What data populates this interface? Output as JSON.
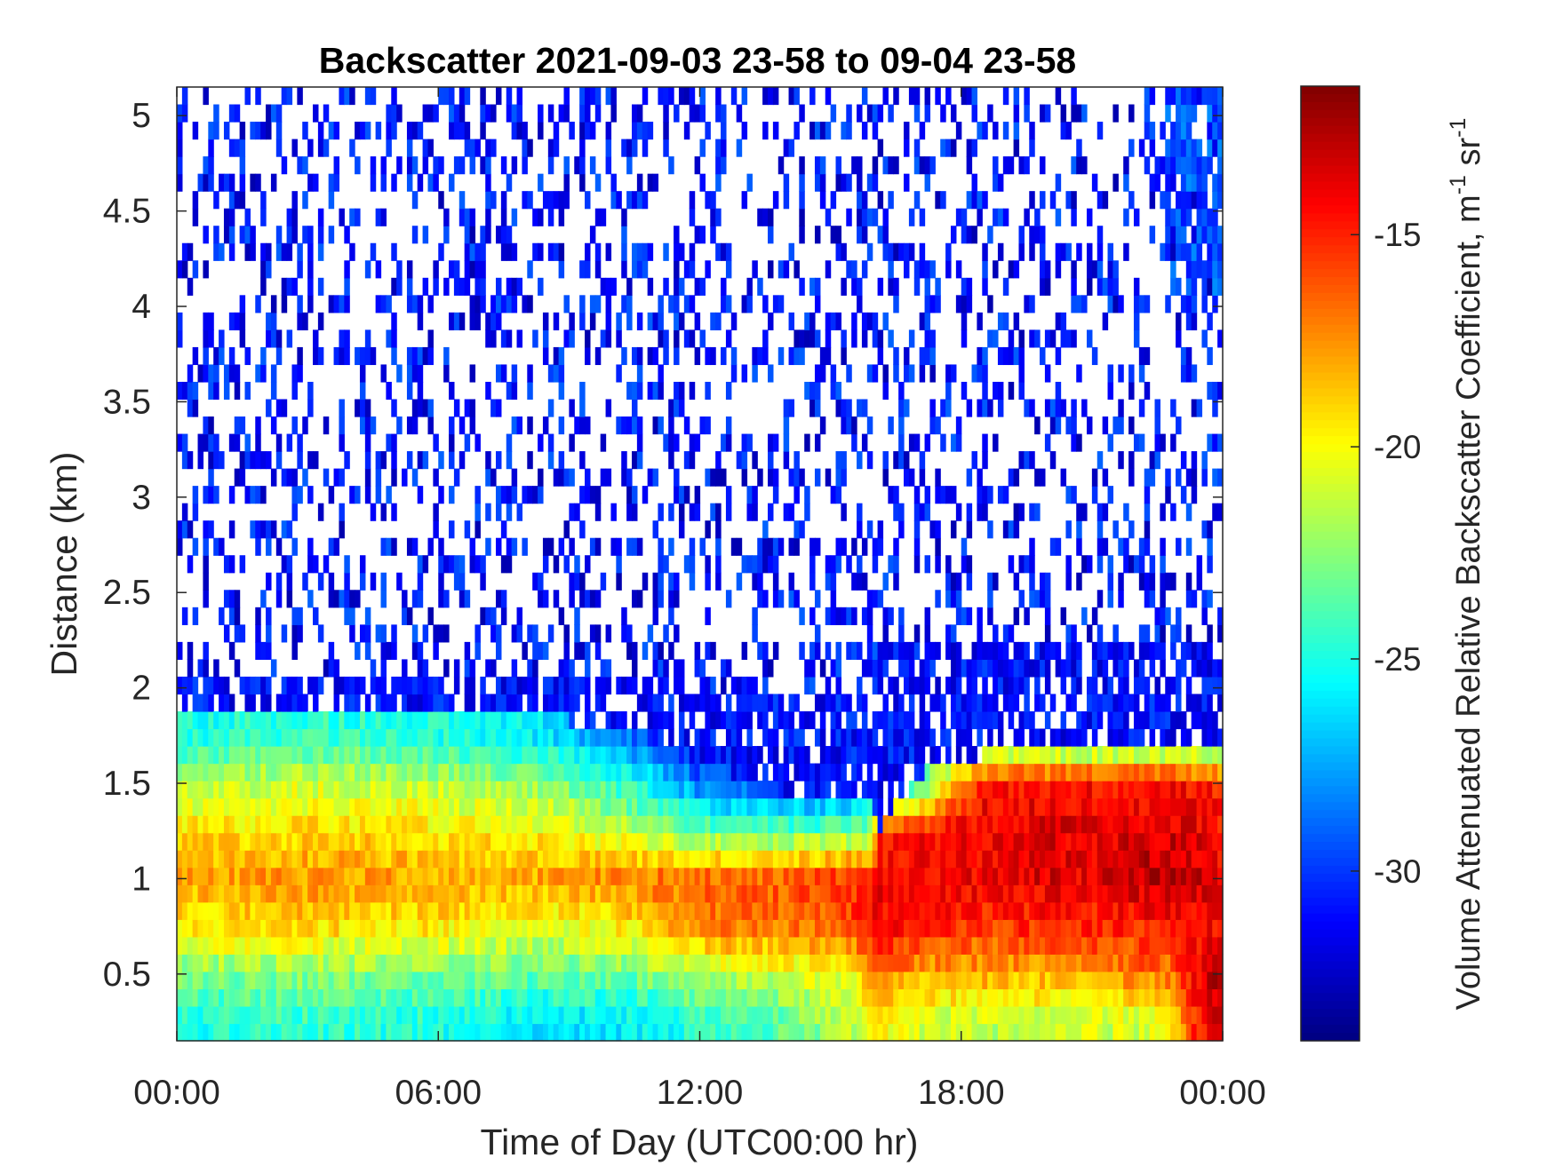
{
  "chart_data": {
    "type": "heatmap",
    "title": "Backscatter 2021-09-03 23-58 to 09-04 23-58",
    "xlabel": "Time of Day (UTC00:00 hr)",
    "ylabel": "Distance (km)",
    "xlim_hours": [
      0,
      24
    ],
    "ylim_km": [
      0.15,
      5.15
    ],
    "xticks": [
      {
        "value": 0,
        "label": "00:00"
      },
      {
        "value": 6,
        "label": "06:00"
      },
      {
        "value": 12,
        "label": "12:00"
      },
      {
        "value": 18,
        "label": "18:00"
      },
      {
        "value": 24,
        "label": "00:00"
      }
    ],
    "yticks": [
      {
        "value": 0.5,
        "label": "0.5"
      },
      {
        "value": 1,
        "label": "1"
      },
      {
        "value": 1.5,
        "label": "1.5"
      },
      {
        "value": 2,
        "label": "2"
      },
      {
        "value": 2.5,
        "label": "2.5"
      },
      {
        "value": 3,
        "label": "3"
      },
      {
        "value": 3.5,
        "label": "3.5"
      },
      {
        "value": 4,
        "label": "4"
      },
      {
        "value": 4.5,
        "label": "4.5"
      },
      {
        "value": 5,
        "label": "5"
      }
    ],
    "colorbar": {
      "label_main": "Volume Attenuated Relative Backscatter Coefficient, m",
      "label_sup1": "-1",
      "label_mid": " sr",
      "label_sup2": "-1",
      "clim": [
        -34,
        -11.5
      ],
      "ticks": [
        {
          "value": -15,
          "label": "-15"
        },
        {
          "value": -20,
          "label": "-20"
        },
        {
          "value": -25,
          "label": "-25"
        },
        {
          "value": -30,
          "label": "-30"
        }
      ],
      "colormap": "jet"
    },
    "grid": false,
    "profile_hours": [
      0,
      3,
      6,
      8.5,
      10.5,
      12,
      14,
      15.5,
      15.9,
      16.1,
      17,
      18.5,
      20,
      21,
      22,
      22.8,
      23.4,
      24
    ],
    "layer_top_km": [
      1.85,
      1.85,
      1.85,
      1.85,
      1.78,
      1.62,
      1.45,
      1.45,
      1.45,
      1.25,
      1.55,
      1.65,
      1.65,
      1.65,
      1.65,
      1.65,
      1.65,
      1.65
    ],
    "profiles_km": [
      0.25,
      0.5,
      0.75,
      1.0,
      1.25,
      1.5,
      1.75
    ],
    "profiles_value": [
      [
        -25,
        -23,
        -19.5,
        -18,
        -19.5,
        -21.5,
        -25
      ],
      [
        -24.5,
        -22.5,
        -19,
        -17.5,
        -19,
        -21,
        -24.5
      ],
      [
        -25,
        -23,
        -19.5,
        -18,
        -19.5,
        -21.5,
        -25
      ],
      [
        -26,
        -23.5,
        -20.5,
        -18,
        -20,
        -22.5,
        -26
      ],
      [
        -26,
        -23,
        -19.5,
        -17,
        -21.5,
        -25,
        -29
      ],
      [
        -24.5,
        -21.5,
        -17,
        -16.5,
        -23,
        -28.5,
        -32
      ],
      [
        -23.5,
        -21,
        -17,
        -16,
        -23.5,
        -30,
        -32
      ],
      [
        -21.5,
        -20,
        -16,
        -15,
        -23,
        -29.5,
        -32
      ],
      [
        -20,
        -18,
        -14,
        -15,
        -22,
        -29,
        -32
      ],
      [
        -20,
        -17,
        -14,
        -14,
        -15.5,
        -29,
        -32
      ],
      [
        -21,
        -18,
        -15,
        -14,
        -14.5,
        -24,
        -26.5
      ],
      [
        -21.5,
        -18,
        -15.5,
        -14,
        -14,
        -14.5,
        -25.5
      ],
      [
        -21.5,
        -18,
        -15,
        -13.5,
        -13.5,
        -14.5,
        -25.5
      ],
      [
        -21,
        -17.5,
        -15,
        -14,
        -14,
        -14.5,
        -25.5
      ],
      [
        -21,
        -17,
        -15,
        -13,
        -13.5,
        -14.5,
        -25.5
      ],
      [
        -20,
        -17,
        -14.5,
        -12.5,
        -13.5,
        -14.5,
        -25.5
      ],
      [
        -15,
        -14,
        -14.5,
        -13,
        -14,
        -14.5,
        -25.5
      ],
      [
        -13,
        -12.5,
        -14.5,
        -14,
        -14.5,
        -15,
        -25.5
      ]
    ],
    "transition_zone_top_km": [
      2.1,
      2.1,
      2.1,
      2.05,
      2.05,
      2.0,
      1.95,
      1.95,
      2.0,
      2.25,
      2.25,
      2.2,
      2.2,
      2.2,
      2.2,
      2.2,
      2.2,
      2.2
    ],
    "sparse_noise_value_range": [
      -33,
      -29
    ],
    "upper_aerosol_patch": {
      "hours": [
        22.7,
        24
      ],
      "km": [
        3.95,
        5.15
      ],
      "value_range": [
        -31,
        -28
      ]
    }
  }
}
